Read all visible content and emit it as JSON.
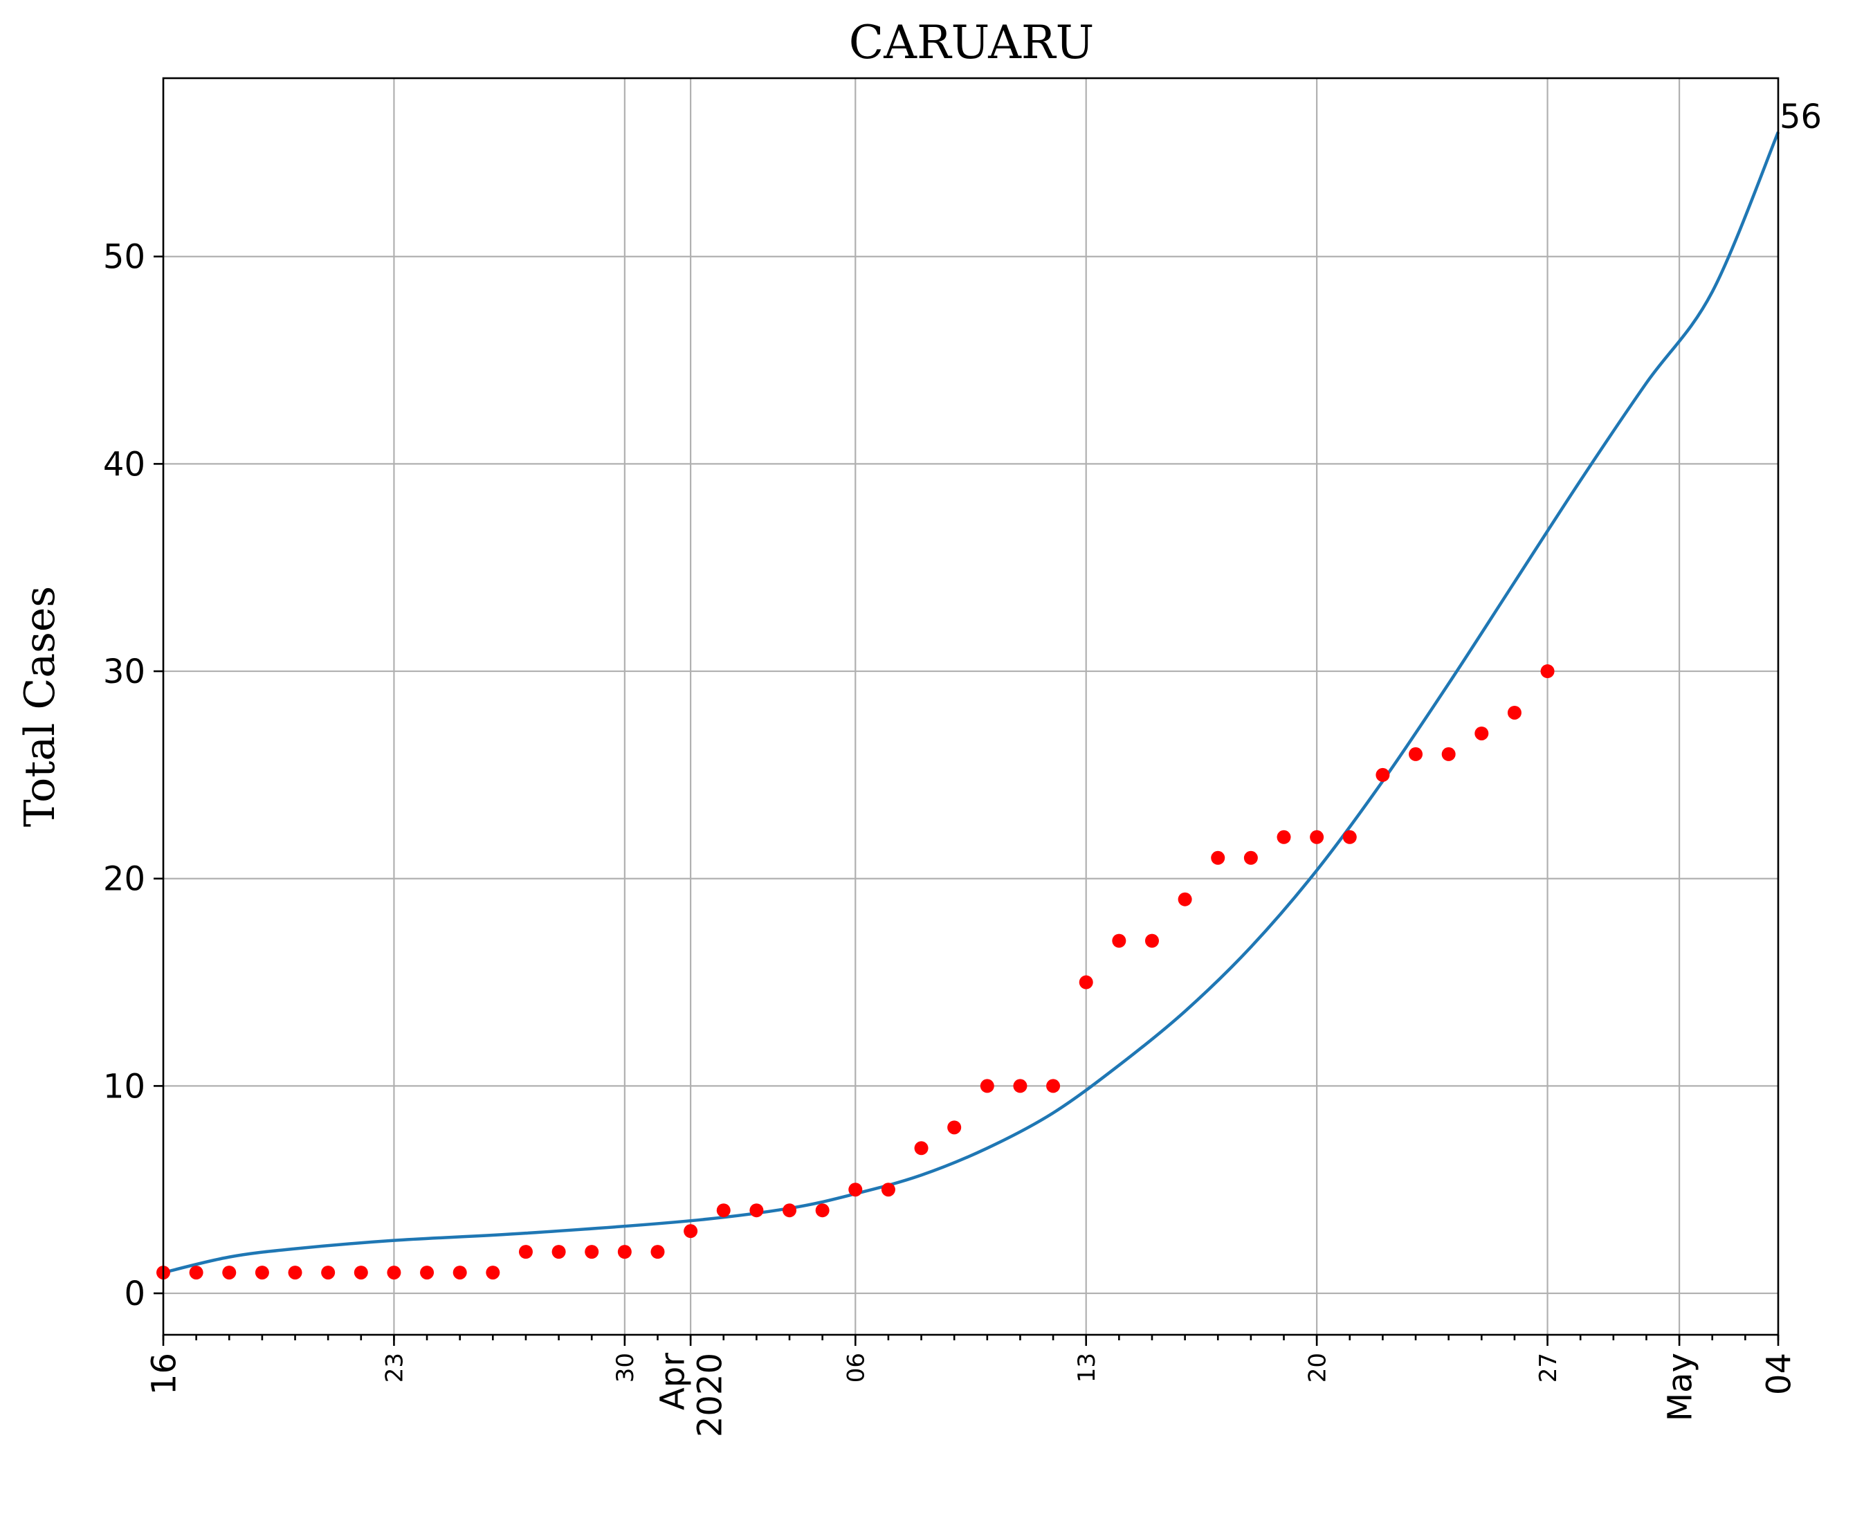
{
  "chart_data": {
    "type": "scatter",
    "title": "CARUARU",
    "xlabel": "",
    "ylabel": "Total Cases",
    "xlim": [
      "2020-03-16",
      "2020-05-04"
    ],
    "ylim": [
      -2,
      58.6
    ],
    "grid": true,
    "y_ticks": [
      0,
      10,
      20,
      30,
      40,
      50
    ],
    "x_ticks": [
      {
        "date": "2020-03-16",
        "lines": [
          "16"
        ],
        "style": "major"
      },
      {
        "date": "2020-03-23",
        "lines": [
          "23"
        ],
        "style": "minor"
      },
      {
        "date": "2020-03-30",
        "lines": [
          "30"
        ],
        "style": "minor"
      },
      {
        "date": "2020-04-01",
        "lines": [
          "Apr",
          "2020"
        ],
        "style": "major"
      },
      {
        "date": "2020-04-06",
        "lines": [
          "06"
        ],
        "style": "minor"
      },
      {
        "date": "2020-04-13",
        "lines": [
          "13"
        ],
        "style": "minor"
      },
      {
        "date": "2020-04-20",
        "lines": [
          "20"
        ],
        "style": "minor"
      },
      {
        "date": "2020-04-27",
        "lines": [
          "27"
        ],
        "style": "minor"
      },
      {
        "date": "2020-05-01",
        "lines": [
          "May"
        ],
        "style": "major"
      },
      {
        "date": "2020-05-04",
        "lines": [
          "04"
        ],
        "style": "major"
      }
    ],
    "series": [
      {
        "kind": "scatter",
        "color": "#ff0000",
        "x": [
          "2020-03-16",
          "2020-03-17",
          "2020-03-18",
          "2020-03-19",
          "2020-03-20",
          "2020-03-21",
          "2020-03-22",
          "2020-03-23",
          "2020-03-24",
          "2020-03-25",
          "2020-03-26",
          "2020-03-27",
          "2020-03-28",
          "2020-03-29",
          "2020-03-30",
          "2020-03-31",
          "2020-04-01",
          "2020-04-02",
          "2020-04-03",
          "2020-04-04",
          "2020-04-05",
          "2020-04-06",
          "2020-04-07",
          "2020-04-08",
          "2020-04-09",
          "2020-04-10",
          "2020-04-11",
          "2020-04-12",
          "2020-04-13",
          "2020-04-14",
          "2020-04-15",
          "2020-04-16",
          "2020-04-17",
          "2020-04-18",
          "2020-04-19",
          "2020-04-20",
          "2020-04-21",
          "2020-04-22",
          "2020-04-23",
          "2020-04-24",
          "2020-04-25",
          "2020-04-26",
          "2020-04-27"
        ],
        "y": [
          1,
          1,
          1,
          1,
          1,
          1,
          1,
          1,
          1,
          1,
          1,
          2,
          2,
          2,
          2,
          2,
          3,
          4,
          4,
          4,
          4,
          5,
          5,
          7,
          8,
          10,
          10,
          10,
          15,
          17,
          17,
          19,
          21,
          21,
          22,
          22,
          22,
          25,
          26,
          26,
          27,
          28,
          30
        ]
      },
      {
        "kind": "line",
        "color": "#1f77b4",
        "x": [
          "2020-03-16",
          "2020-03-18",
          "2020-03-20",
          "2020-03-23",
          "2020-03-27",
          "2020-04-01",
          "2020-04-04",
          "2020-04-06",
          "2020-04-08",
          "2020-04-10",
          "2020-04-12",
          "2020-04-14",
          "2020-04-16",
          "2020-04-18",
          "2020-04-20",
          "2020-04-22",
          "2020-04-24",
          "2020-04-26",
          "2020-04-28",
          "2020-04-30",
          "2020-05-02",
          "2020-05-04"
        ],
        "y": [
          1.0,
          1.75,
          2.15,
          2.55,
          2.9,
          3.5,
          4.1,
          4.8,
          5.7,
          7.0,
          8.7,
          11.0,
          13.6,
          16.7,
          20.4,
          24.7,
          29.4,
          34.3,
          39.2,
          43.9,
          48.3,
          56
        ]
      }
    ],
    "annotations": [
      {
        "text": "56",
        "x": "2020-05-04",
        "y": 56
      }
    ]
  }
}
